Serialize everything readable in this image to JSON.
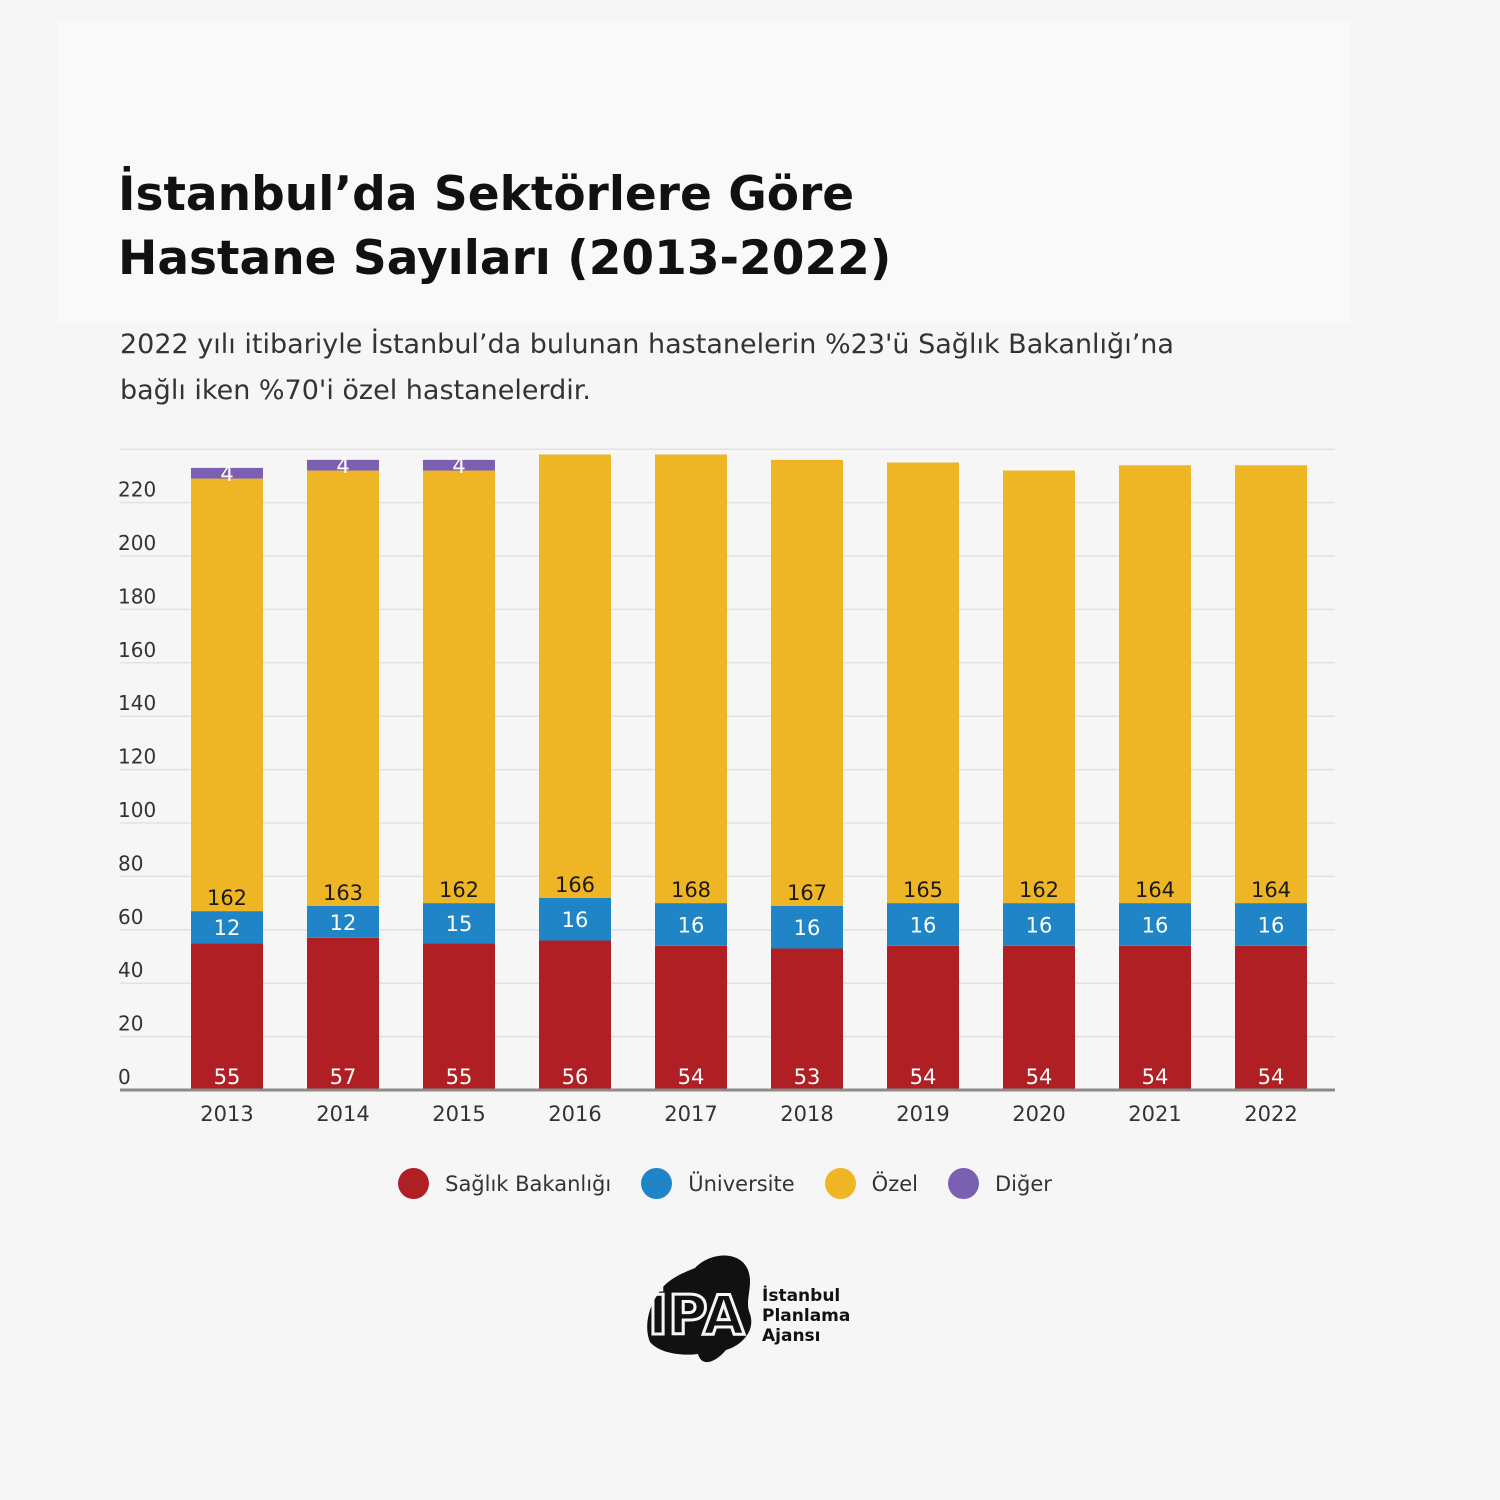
{
  "title": {
    "line1": "İstanbul’da Sektörlere Göre",
    "line2": "Hastane Sayıları (2013-2022)"
  },
  "subtitle": {
    "line1": "2022 yılı itibariyle İstanbul’da bulunan hastanelerin %23'ü Sağlık Bakanlığı’na",
    "line2": "bağlı iken %70'i özel hastanelerdir."
  },
  "chart_data": {
    "type": "bar",
    "stacked": true,
    "categories": [
      "2013",
      "2014",
      "2015",
      "2016",
      "2017",
      "2018",
      "2019",
      "2020",
      "2021",
      "2022"
    ],
    "series": [
      {
        "name": "Sağlık Bakanlığı",
        "color": "#b01f24",
        "values": [
          55,
          57,
          55,
          56,
          54,
          53,
          54,
          54,
          54,
          54
        ]
      },
      {
        "name": "Üniversite",
        "color": "#1f85c6",
        "values": [
          12,
          12,
          15,
          16,
          16,
          16,
          16,
          16,
          16,
          16
        ]
      },
      {
        "name": "Özel",
        "color": "#eeb524",
        "values": [
          162,
          163,
          162,
          166,
          168,
          167,
          165,
          162,
          164,
          164
        ]
      },
      {
        "name": "Diğer",
        "color": "#7b5fb1",
        "values": [
          4,
          4,
          4,
          0,
          0,
          0,
          0,
          0,
          0,
          0
        ]
      }
    ],
    "ytick_labels": [
      "0",
      "20",
      "40",
      "60",
      "80",
      "100",
      "120",
      "140",
      "160",
      "180",
      "200",
      "220"
    ],
    "ylim": [
      0,
      240
    ],
    "grid": true,
    "legend_position": "bottom-center",
    "xlabel": "",
    "ylabel": ""
  },
  "logo": {
    "text_line1": "İstanbul",
    "text_line2": "Planlama",
    "text_line3": "Ajansı",
    "mark": "İPA"
  }
}
